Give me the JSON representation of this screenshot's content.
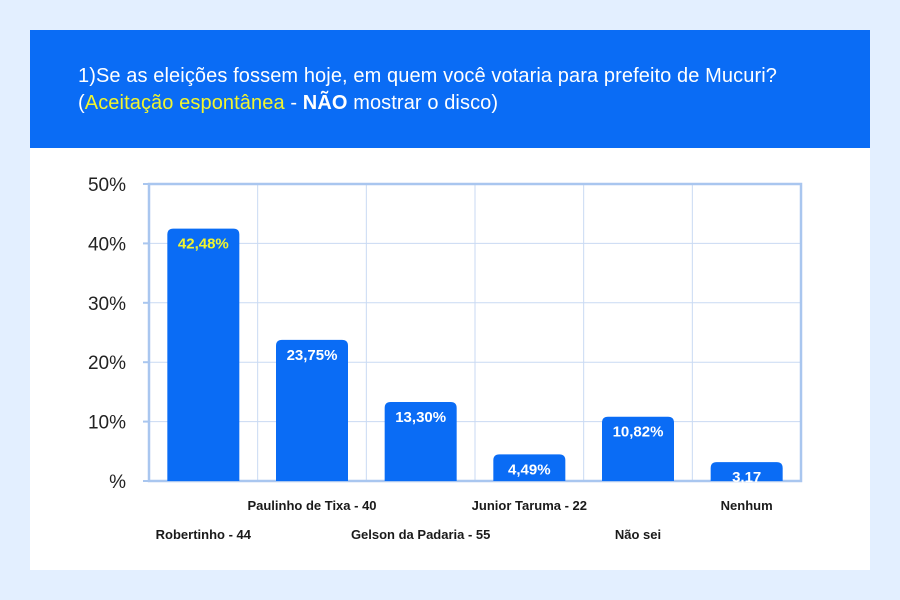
{
  "header": {
    "title_part1": "1)Se as eleições fossem hoje, em quem você votaria para prefeito de Mucuri? (",
    "title_highlight": "Aceitação espontânea",
    "title_sep": " - ",
    "title_bold": "NÃO",
    "title_part2": " mostrar o disco)"
  },
  "colors": {
    "header_bg": "#0a6cf5",
    "bar": "#0a6cf5",
    "highlight_label": "#f2f52e",
    "value_label": "#ffffff",
    "grid": "#c9daf3",
    "axis": "#a9c6ef"
  },
  "chart_data": {
    "type": "bar",
    "categories": [
      "Robertinho - 44",
      "Paulinho de Tixa - 40",
      "Gelson da Padaria - 55",
      "Junior Taruma - 22",
      "Não sei",
      "Nenhum"
    ],
    "values": [
      42.48,
      23.75,
      13.3,
      4.49,
      10.82,
      3.17
    ],
    "value_labels": [
      "42,48%",
      "23,75%",
      "13,30%",
      "4,49%",
      "10,82%",
      "3,17"
    ],
    "highlight_index": 0,
    "ylim": [
      0,
      50
    ],
    "yticks": [
      0,
      10,
      20,
      30,
      40,
      50
    ],
    "ytick_labels": [
      "%",
      "10%",
      "20%",
      "30%",
      "40%",
      "50%"
    ],
    "grid": true,
    "legend": false,
    "title": "",
    "xlabel": "",
    "ylabel": ""
  }
}
